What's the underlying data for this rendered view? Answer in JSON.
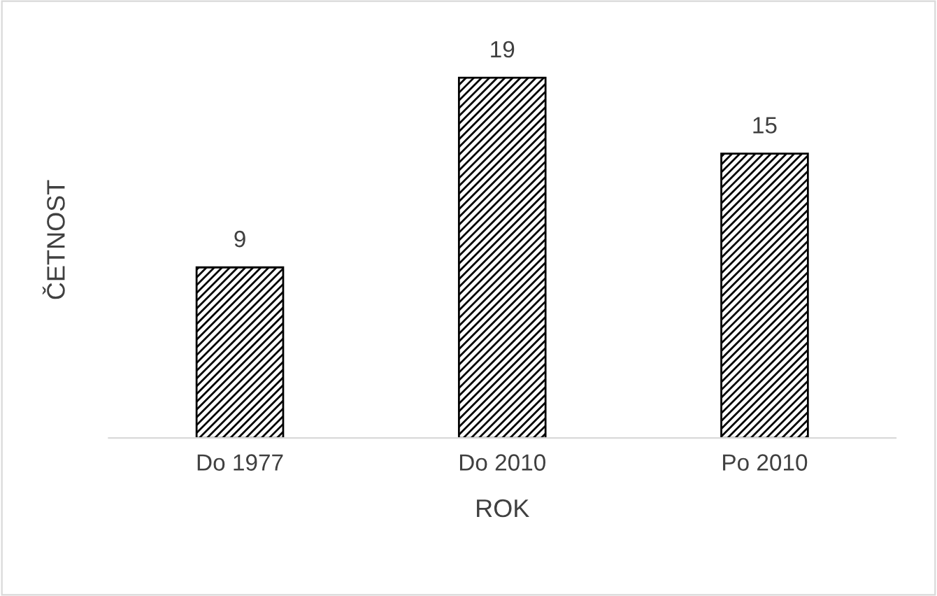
{
  "chart_data": {
    "type": "bar",
    "xlabel": "ROK",
    "ylabel": "ČETNOST",
    "categories": [
      "Do 1977",
      "Do 2010",
      "Po 2010"
    ],
    "values": [
      9,
      19,
      15
    ],
    "color": "#000000",
    "data_labels": true,
    "grid": false
  }
}
